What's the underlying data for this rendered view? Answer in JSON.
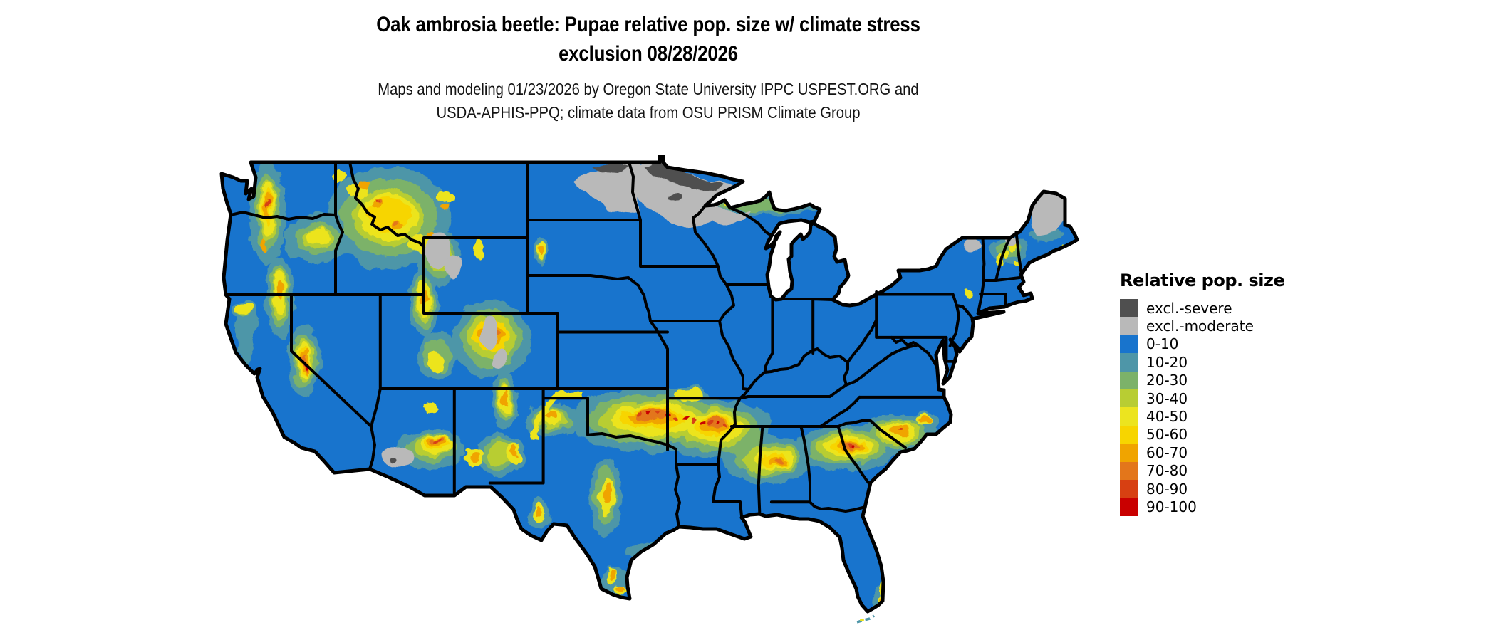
{
  "title": {
    "line1": "Oak ambrosia beetle: Pupae relative pop. size w/ climate stress",
    "line2": "exclusion 08/28/2026"
  },
  "subtitle": {
    "line1": "Maps and modeling 01/23/2026 by Oregon State University IPPC USPEST.ORG and",
    "line2": "USDA-APHIS-PPQ; climate data from OSU PRISM Climate Group"
  },
  "legend": {
    "title": "Relative pop. size",
    "items": [
      {
        "label": "excl.-severe",
        "color": "#4f4f4f"
      },
      {
        "label": "excl.-moderate",
        "color": "#b9b9b9"
      },
      {
        "label": "0-10",
        "color": "#1874cd"
      },
      {
        "label": "10-20",
        "color": "#4e96a8"
      },
      {
        "label": "20-30",
        "color": "#7cb269"
      },
      {
        "label": "30-40",
        "color": "#b8cd33"
      },
      {
        "label": "40-50",
        "color": "#ece41f"
      },
      {
        "label": "50-60",
        "color": "#f7d500"
      },
      {
        "label": "60-70",
        "color": "#f0a400"
      },
      {
        "label": "70-80",
        "color": "#e3761b"
      },
      {
        "label": "80-90",
        "color": "#d74012"
      },
      {
        "label": "90-100",
        "color": "#c90000"
      }
    ]
  },
  "map": {
    "type": "raster-choropleth",
    "region": "Contiguous United States with state borders",
    "base_class": "0-10",
    "base_color": "#1874cd",
    "visible_patterns": [
      "excl.-moderate gray across northern North Dakota, most of northern Minnesota, northern Wisconsin and northern Maine",
      "excl.-severe dark gray band along the Canadian border in North Dakota and northern Minnesota",
      "high relative pop. (yellow-orange-red) band across Oklahoma, Arkansas, northern Texas edge, and across central Alabama, Georgia, South Carolina and North Carolina to the Atlantic coast",
      "mottled yellow/orange mountain ranges: Cascades, Sierra Nevada, Idaho/Montana Rockies, Wyoming, Utah, Colorado Rockies, Arizona Mogollon Rim, New Mexico ranges, Black Hills",
      "excl.-moderate gray patches over high Rockies in Wyoming, Colorado, and east-central Arizona and over the Adirondacks/White Mountains",
      "small yellow/orange areas at the southern tip of Florida and along the Rio Grande in south Texas",
      "teal/green (10-30) fringes around all higher population areas; remainder of CONUS is blue (0-10)"
    ]
  }
}
